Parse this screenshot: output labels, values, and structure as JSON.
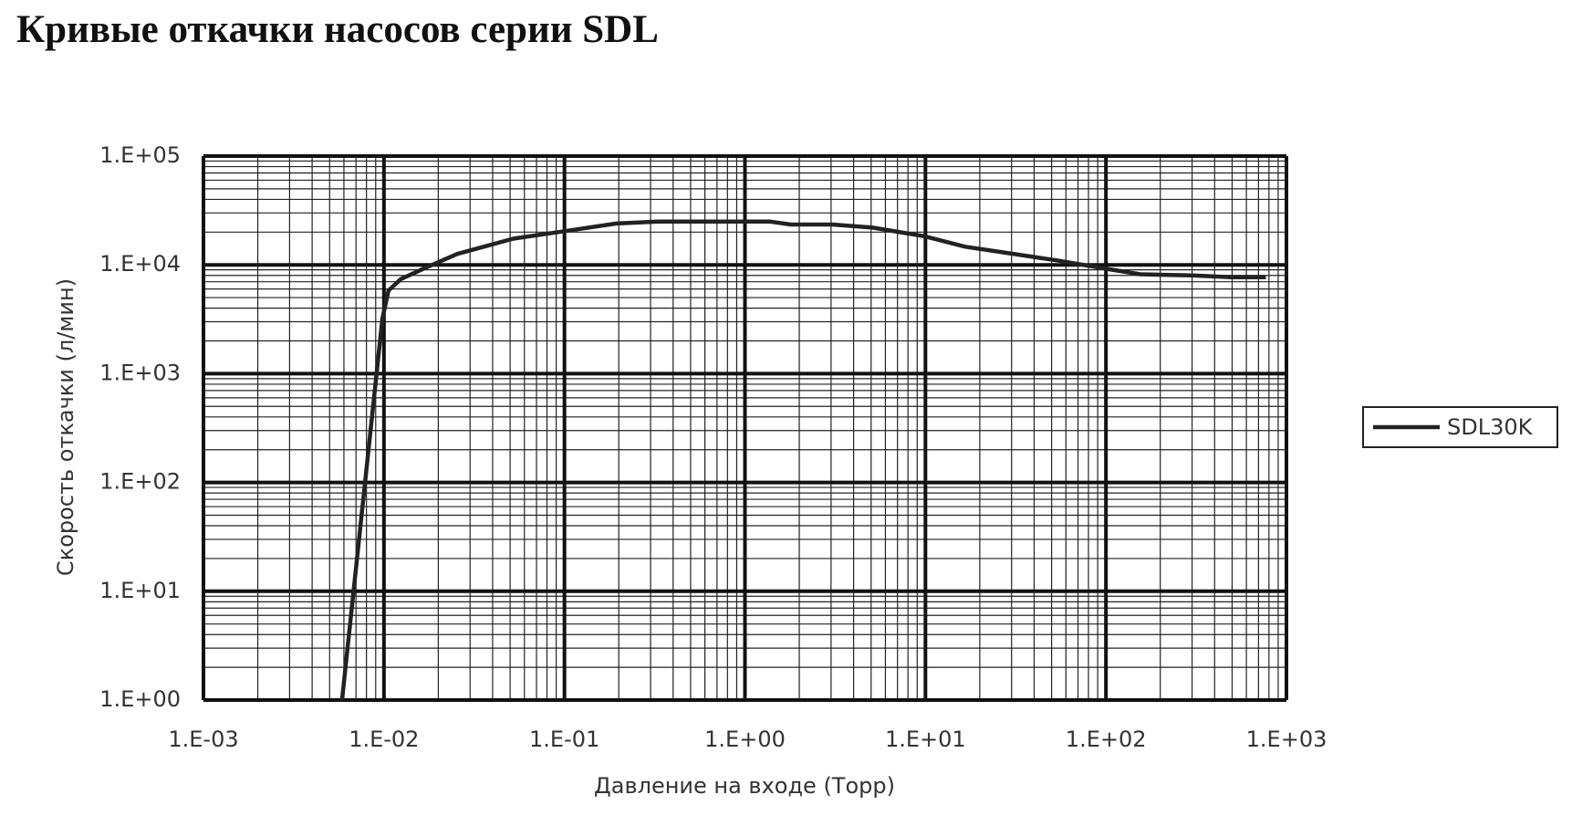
{
  "chart_data": {
    "type": "line",
    "title": "Кривые откачки насосов серии SDL",
    "x_label": "Давление на входе (Торр)",
    "y_label": "Скорость откачки (л/мин)",
    "x": [
      0.00586,
      0.0098,
      0.0106,
      0.0124,
      0.0172,
      0.0255,
      0.052,
      0.1,
      0.194,
      0.33,
      1.38,
      1.8,
      3.05,
      5.1,
      9.9,
      16.6,
      28,
      55,
      105,
      155,
      300,
      500,
      770
    ],
    "series": [
      {
        "name": "SDL30K",
        "color": "#222222",
        "values": [
          1,
          3200,
          5800,
          7400,
          9500,
          12600,
          17400,
          20400,
          24000,
          25000,
          25000,
          23500,
          23500,
          22000,
          18300,
          14700,
          12900,
          10900,
          9100,
          8200,
          8000,
          7700,
          7700
        ]
      }
    ],
    "xlim": [
      0.001,
      1000
    ],
    "ylim": [
      1,
      100000
    ],
    "xticks": [
      {
        "value": 0.001,
        "label": "1.E-03"
      },
      {
        "value": 0.01,
        "label": "1.E-02"
      },
      {
        "value": 0.1,
        "label": "1.E-01"
      },
      {
        "value": 1,
        "label": "1.E+00"
      },
      {
        "value": 10,
        "label": "1.E+01"
      },
      {
        "value": 100,
        "label": "1.E+02"
      },
      {
        "value": 1000,
        "label": "1.E+03"
      }
    ],
    "yticks": [
      {
        "value": 1,
        "label": "1.E+00"
      },
      {
        "value": 10,
        "label": "1.E+01"
      },
      {
        "value": 100,
        "label": "1.E+02"
      },
      {
        "value": 1000,
        "label": "1.E+03"
      },
      {
        "value": 10000,
        "label": "1.E+04"
      },
      {
        "value": 100000,
        "label": "1.E+05"
      }
    ],
    "x_log": true,
    "y_log": true,
    "grid": true,
    "minor_grid": true,
    "legend": "right"
  }
}
